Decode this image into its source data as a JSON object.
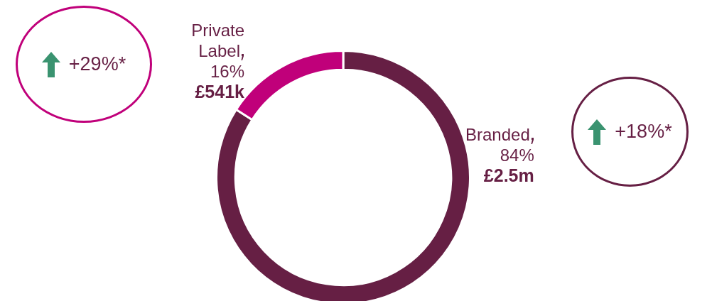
{
  "chart_data": {
    "type": "donut",
    "categories": [
      "Branded",
      "Private Label"
    ],
    "values": [
      84,
      16
    ],
    "colors": [
      "#661f44",
      "#c0007a"
    ],
    "value_labels": [
      "84%",
      "16%"
    ],
    "annotations": [
      {
        "text": "£2.5m",
        "x": "Branded"
      },
      {
        "text": "+18%*",
        "x": "Branded"
      },
      {
        "text": "£541k",
        "x": "Private Label"
      },
      {
        "text": "+29%*",
        "x": "Private Label"
      }
    ]
  }
}
